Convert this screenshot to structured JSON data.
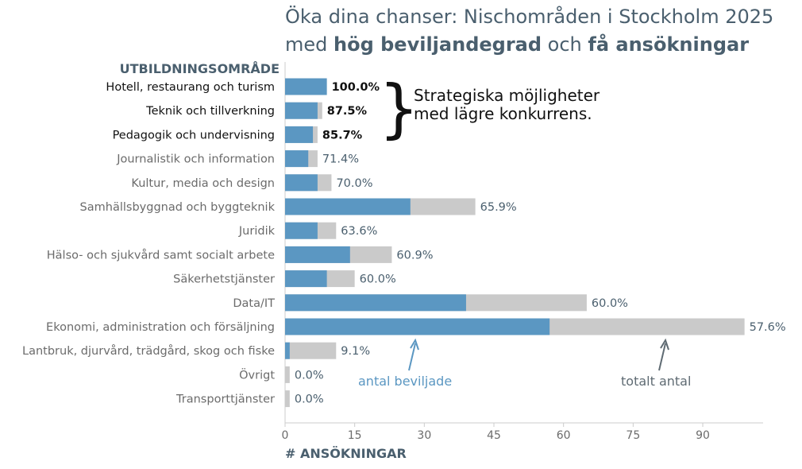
{
  "title_line1": "Öka dina chanser: Nischområden i Stockholm 2025",
  "title_line2_pre": "med ",
  "title_line2_bold1": "hög beviljandegrad",
  "title_line2_mid": " och ",
  "title_line2_bold2": "få ansökningar",
  "callout_line1": "Strategiska möjligheter",
  "callout_line2": "med lägre konkurrens.",
  "annotation_approved": "antal beviljade",
  "annotation_total": "totalt antal",
  "colors": {
    "approved": "#5b97c2",
    "total": "#cacaca",
    "title": "#4a5f6e",
    "highlight_text": "#111111",
    "muted_text": "#6b6b6b"
  },
  "chart_data": {
    "type": "bar",
    "orientation": "horizontal",
    "ylabel": "UTBILDNINGSOMRÅDE",
    "xlabel": "# ANSÖKNINGAR",
    "xlim": [
      0,
      103
    ],
    "xticks": [
      0,
      15,
      30,
      45,
      60,
      75,
      90
    ],
    "grid": false,
    "categories": [
      "Hotell, restaurang och turism",
      "Teknik och tillverkning",
      "Pedagogik och undervisning",
      "Journalistik och information",
      "Kultur, media och design",
      "Samhällsbyggnad och byggteknik",
      "Juridik",
      "Hälso- och sjukvård samt socialt arbete",
      "Säkerhetstjänster",
      "Data/IT",
      "Ekonomi, administration och försäljning",
      "Lantbruk, djurvård, trädgård, skog och fiske",
      "Övrigt",
      "Transporttjänster"
    ],
    "series": [
      {
        "name": "antal beviljade",
        "values": [
          9,
          7,
          6,
          5,
          7,
          27,
          7,
          14,
          9,
          39,
          57,
          1,
          0,
          0
        ]
      },
      {
        "name": "totalt antal",
        "values": [
          9,
          8,
          7,
          7,
          10,
          41,
          11,
          23,
          15,
          65,
          99,
          11,
          1,
          1
        ]
      }
    ],
    "data_labels": [
      "100.0%",
      "87.5%",
      "85.7%",
      "71.4%",
      "70.0%",
      "65.9%",
      "63.6%",
      "60.9%",
      "60.0%",
      "60.0%",
      "57.6%",
      "9.1%",
      "0.0%",
      "0.0%"
    ],
    "highlighted": [
      0,
      1,
      2
    ]
  }
}
